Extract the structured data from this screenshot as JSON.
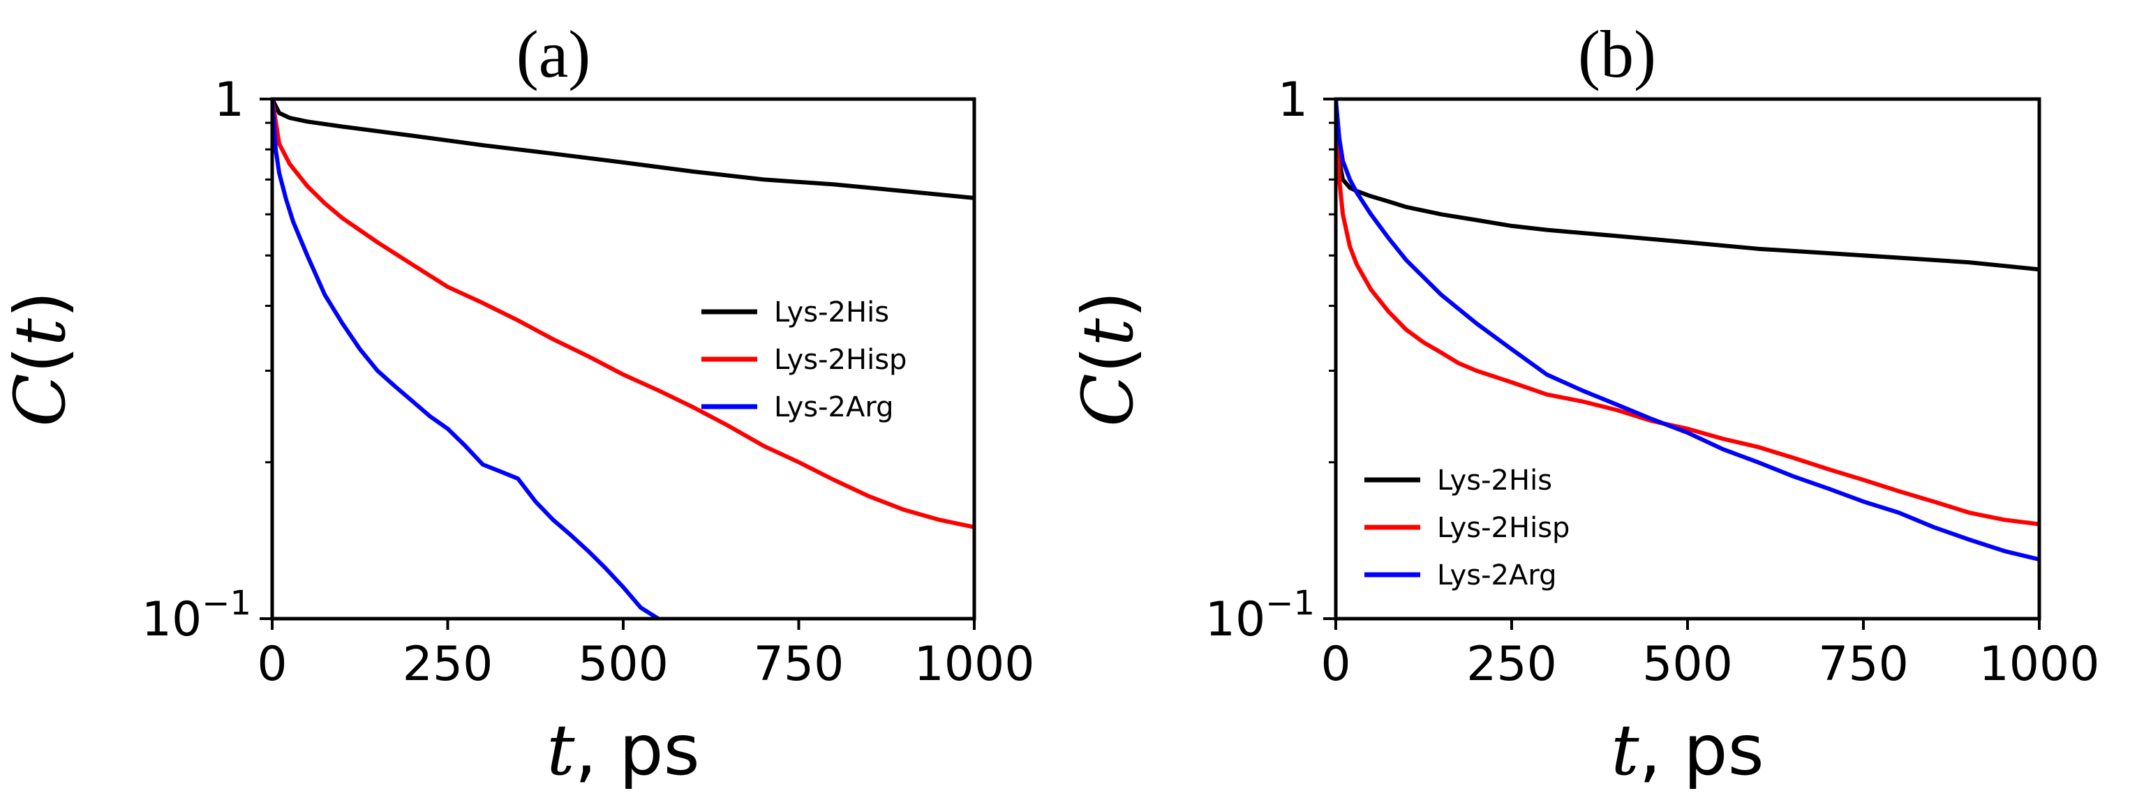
{
  "chart_data": [
    {
      "type": "line",
      "panel_label": "(a)",
      "title": "(a)",
      "xlabel_var": "t",
      "xlabel_unit": ", ps",
      "ylabel_func": "C(",
      "ylabel_var": "t",
      "ylabel_close": ")",
      "yscale": "log",
      "xlim": [
        0,
        1000
      ],
      "ylim": [
        0.1,
        1
      ],
      "x_ticks": [
        0,
        250,
        500,
        750,
        1000
      ],
      "x_tick_labels": [
        "0",
        "250",
        "500",
        "750",
        "1000"
      ],
      "y_tick_labels": {
        "top": "1",
        "bottom_base": "10",
        "bottom_exp": "−1"
      },
      "legend_position": "center-right",
      "series": [
        {
          "name": "Lys-2His",
          "color": "#000000",
          "x": [
            0,
            10,
            25,
            50,
            100,
            200,
            300,
            400,
            500,
            600,
            700,
            800,
            900,
            1000
          ],
          "y": [
            1.0,
            0.94,
            0.92,
            0.905,
            0.885,
            0.85,
            0.815,
            0.785,
            0.755,
            0.725,
            0.7,
            0.685,
            0.665,
            0.645
          ]
        },
        {
          "name": "Lys-2Hisp",
          "color": "#ff0000",
          "x": [
            0,
            10,
            25,
            50,
            75,
            100,
            150,
            200,
            250,
            300,
            350,
            400,
            450,
            500,
            550,
            600,
            650,
            700,
            750,
            800,
            850,
            900,
            950,
            1000
          ],
          "y": [
            1.0,
            0.82,
            0.75,
            0.68,
            0.63,
            0.59,
            0.53,
            0.48,
            0.435,
            0.405,
            0.375,
            0.345,
            0.32,
            0.295,
            0.275,
            0.255,
            0.235,
            0.215,
            0.2,
            0.185,
            0.172,
            0.162,
            0.155,
            0.15
          ]
        },
        {
          "name": "Lys-2Arg",
          "color": "#0000ff",
          "x": [
            0,
            5,
            10,
            20,
            30,
            50,
            75,
            100,
            125,
            150,
            175,
            200,
            225,
            250,
            275,
            300,
            325,
            350,
            375,
            400,
            425,
            450,
            475,
            500,
            525,
            550
          ],
          "y": [
            1.0,
            0.8,
            0.72,
            0.64,
            0.58,
            0.5,
            0.42,
            0.37,
            0.33,
            0.3,
            0.28,
            0.262,
            0.245,
            0.232,
            0.215,
            0.198,
            0.192,
            0.186,
            0.168,
            0.155,
            0.145,
            0.135,
            0.125,
            0.115,
            0.105,
            0.1
          ]
        }
      ]
    },
    {
      "type": "line",
      "panel_label": "(b)",
      "title": "(b)",
      "xlabel_var": "t",
      "xlabel_unit": ", ps",
      "ylabel_func": "C(",
      "ylabel_var": "t",
      "ylabel_close": ")",
      "yscale": "log",
      "xlim": [
        0,
        1000
      ],
      "ylim": [
        0.1,
        1
      ],
      "x_ticks": [
        0,
        250,
        500,
        750,
        1000
      ],
      "x_tick_labels": [
        "0",
        "250",
        "500",
        "750",
        "1000"
      ],
      "y_tick_labels": {
        "top": "1",
        "bottom_base": "10",
        "bottom_exp": "−1"
      },
      "legend_position": "lower-left",
      "series": [
        {
          "name": "Lys-2His",
          "color": "#000000",
          "x": [
            0,
            5,
            10,
            20,
            30,
            50,
            75,
            100,
            150,
            200,
            250,
            300,
            400,
            500,
            600,
            700,
            800,
            900,
            1000
          ],
          "y": [
            1.0,
            0.76,
            0.7,
            0.675,
            0.665,
            0.65,
            0.635,
            0.62,
            0.6,
            0.585,
            0.57,
            0.56,
            0.545,
            0.53,
            0.515,
            0.505,
            0.495,
            0.485,
            0.47
          ]
        },
        {
          "name": "Lys-2Hisp",
          "color": "#ff0000",
          "x": [
            0,
            5,
            10,
            20,
            30,
            50,
            75,
            100,
            125,
            150,
            175,
            200,
            250,
            300,
            350,
            400,
            450,
            500,
            550,
            600,
            650,
            700,
            750,
            800,
            850,
            900,
            950,
            1000
          ],
          "y": [
            1.0,
            0.7,
            0.6,
            0.52,
            0.48,
            0.43,
            0.39,
            0.36,
            0.34,
            0.325,
            0.31,
            0.3,
            0.285,
            0.27,
            0.262,
            0.252,
            0.24,
            0.232,
            0.222,
            0.214,
            0.204,
            0.194,
            0.185,
            0.176,
            0.168,
            0.16,
            0.155,
            0.152
          ]
        },
        {
          "name": "Lys-2Arg",
          "color": "#0000ff",
          "x": [
            0,
            5,
            10,
            20,
            30,
            50,
            75,
            100,
            150,
            200,
            250,
            300,
            350,
            400,
            450,
            500,
            550,
            600,
            650,
            700,
            750,
            800,
            850,
            900,
            950,
            1000
          ],
          "y": [
            1.0,
            0.84,
            0.76,
            0.7,
            0.66,
            0.6,
            0.54,
            0.49,
            0.42,
            0.37,
            0.33,
            0.295,
            0.275,
            0.258,
            0.242,
            0.228,
            0.212,
            0.2,
            0.188,
            0.178,
            0.168,
            0.16,
            0.15,
            0.142,
            0.135,
            0.13
          ]
        }
      ]
    }
  ]
}
